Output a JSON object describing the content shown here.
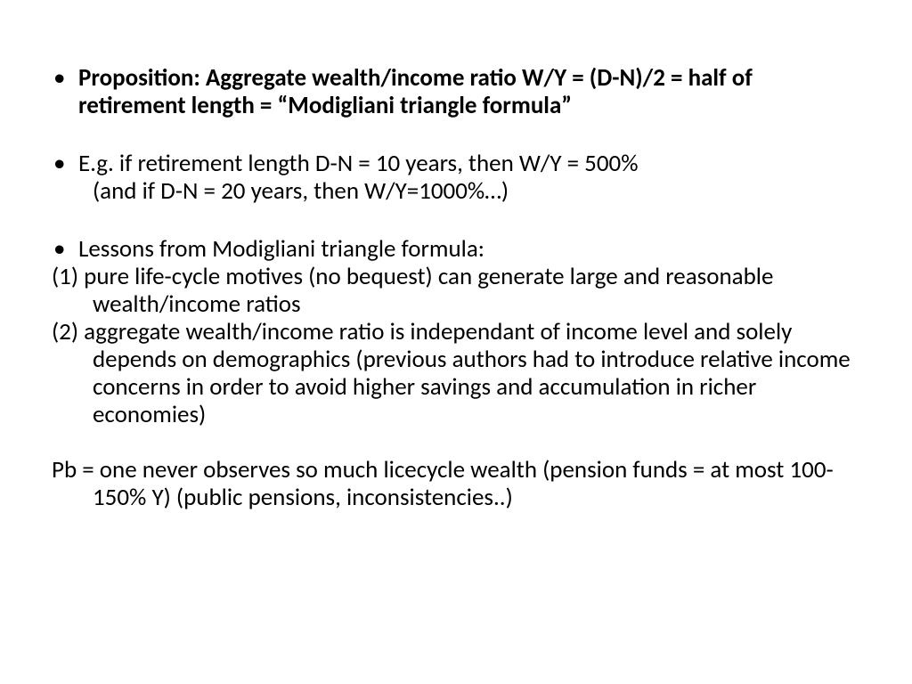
{
  "slide": {
    "font_family": "Calibri",
    "font_size_pt": 20,
    "text_color": "#000000",
    "background_color": "#ffffff",
    "bullet_char": "•",
    "items": {
      "proposition": "Proposition: Aggregate wealth/income ratio W/Y = (D-N)/2 = half of retirement length = “Modigliani triangle formula”",
      "example_line1": "E.g. if retirement length D-N = 10 years, then W/Y = 500%",
      "example_line2": "(and if D-N = 20 years, then W/Y=1000%…)",
      "lessons_header": "Lessons from Modigliani triangle formula:",
      "lesson1": "(1) pure life-cycle motives (no bequest) can generate large and reasonable wealth/income ratios",
      "lesson2": "(2) aggregate wealth/income ratio is independant of income level and solely depends on demographics (previous authors had to introduce relative income concerns in order to avoid higher savings and accumulation in richer economies)",
      "pb": "Pb = one never observes so much licecycle wealth (pension funds = at most 100-150% Y) (public pensions, inconsistencies..)"
    }
  }
}
